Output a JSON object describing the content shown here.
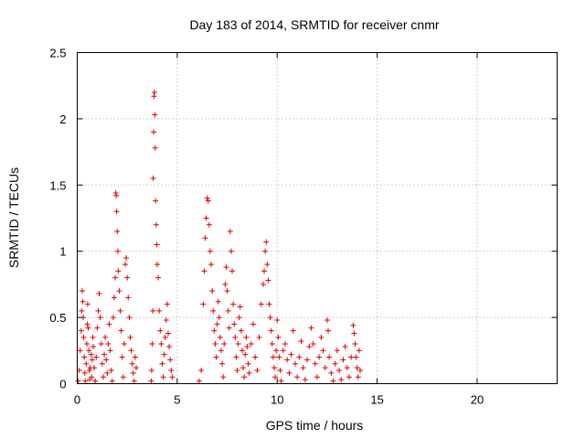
{
  "chart_data": {
    "type": "scatter",
    "title": "Day 183 of 2014, SRMTID for receiver cnmr",
    "xlabel": "GPS time / hours",
    "ylabel": "SRMTID / TECUs",
    "xlim": [
      0,
      24
    ],
    "ylim": [
      0,
      2.5
    ],
    "xticks": [
      0,
      5,
      10,
      15,
      20
    ],
    "xtick_labels": [
      "0",
      "5",
      "10",
      "15",
      "20"
    ],
    "yticks": [
      0,
      0.5,
      1,
      1.5,
      2,
      2.5
    ],
    "ytick_labels": [
      "0",
      "0.5",
      "1",
      "1.5",
      "2",
      "2.5"
    ],
    "grid": true,
    "marker": "+",
    "series": [
      {
        "name": "cnmr",
        "color": "#e00000",
        "points": [
          [
            0.05,
            0.02
          ],
          [
            0.1,
            0.1
          ],
          [
            0.15,
            0.25
          ],
          [
            0.2,
            0.4
          ],
          [
            0.22,
            0.55
          ],
          [
            0.25,
            0.7
          ],
          [
            0.28,
            0.62
          ],
          [
            0.3,
            0.5
          ],
          [
            0.32,
            0.35
          ],
          [
            0.35,
            0.2
          ],
          [
            0.38,
            0.08
          ],
          [
            0.4,
            0.02
          ],
          [
            0.45,
            0.15
          ],
          [
            0.48,
            0.3
          ],
          [
            0.5,
            0.45
          ],
          [
            0.52,
            0.6
          ],
          [
            0.55,
            0.42
          ],
          [
            0.58,
            0.25
          ],
          [
            0.6,
            0.1
          ],
          [
            0.62,
            0.03
          ],
          [
            0.65,
            0.12
          ],
          [
            0.7,
            0.22
          ],
          [
            0.72,
            0.05
          ],
          [
            0.75,
            0.18
          ],
          [
            0.78,
            0.35
          ],
          [
            0.8,
            0.28
          ],
          [
            0.85,
            0.12
          ],
          [
            0.9,
            0.02
          ],
          [
            0.95,
            0.2
          ],
          [
            1.0,
            0.42
          ],
          [
            1.05,
            0.55
          ],
          [
            1.1,
            0.68
          ],
          [
            1.15,
            0.5
          ],
          [
            1.2,
            0.3
          ],
          [
            1.25,
            0.15
          ],
          [
            1.3,
            0.05
          ],
          [
            1.35,
            0.22
          ],
          [
            1.4,
            0.35
          ],
          [
            1.45,
            0.18
          ],
          [
            1.5,
            0.08
          ],
          [
            1.55,
            0.3
          ],
          [
            1.6,
            0.45
          ],
          [
            1.65,
            0.25
          ],
          [
            1.7,
            0.1
          ],
          [
            1.75,
            0.02
          ],
          [
            1.8,
            0.5
          ],
          [
            1.85,
            0.65
          ],
          [
            1.9,
            0.8
          ],
          [
            1.93,
            1.44
          ],
          [
            1.95,
            1.42
          ],
          [
            1.97,
            1.3
          ],
          [
            2.0,
            1.15
          ],
          [
            2.03,
            1.0
          ],
          [
            2.05,
            0.85
          ],
          [
            2.1,
            0.7
          ],
          [
            2.15,
            0.55
          ],
          [
            2.2,
            0.4
          ],
          [
            2.25,
            0.2
          ],
          [
            2.3,
            0.05
          ],
          [
            2.35,
            0.3
          ],
          [
            2.4,
            0.9
          ],
          [
            2.45,
            0.95
          ],
          [
            2.5,
            0.8
          ],
          [
            2.55,
            0.65
          ],
          [
            2.6,
            0.5
          ],
          [
            2.65,
            0.35
          ],
          [
            2.7,
            0.25
          ],
          [
            2.75,
            0.15
          ],
          [
            2.8,
            0.08
          ],
          [
            2.85,
            0.02
          ],
          [
            2.9,
            0.2
          ],
          [
            2.95,
            0.12
          ],
          [
            3.7,
            0.02
          ],
          [
            3.72,
            0.1
          ],
          [
            3.75,
            0.3
          ],
          [
            3.78,
            0.55
          ],
          [
            3.8,
            1.55
          ],
          [
            3.82,
            1.9
          ],
          [
            3.84,
            2.17
          ],
          [
            3.86,
            2.2
          ],
          [
            3.88,
            2.03
          ],
          [
            3.9,
            1.78
          ],
          [
            3.92,
            1.38
          ],
          [
            3.95,
            1.2
          ],
          [
            3.98,
            1.05
          ],
          [
            4.0,
            0.9
          ],
          [
            4.05,
            0.8
          ],
          [
            4.1,
            0.55
          ],
          [
            4.15,
            0.4
          ],
          [
            4.2,
            0.3
          ],
          [
            4.25,
            0.15
          ],
          [
            4.3,
            0.05
          ],
          [
            4.35,
            0.22
          ],
          [
            4.4,
            0.35
          ],
          [
            4.45,
            0.48
          ],
          [
            4.5,
            0.6
          ],
          [
            4.55,
            0.38
          ],
          [
            4.6,
            0.28
          ],
          [
            4.65,
            0.18
          ],
          [
            4.7,
            0.1
          ],
          [
            4.75,
            0.05
          ],
          [
            6.1,
            0.02
          ],
          [
            6.2,
            0.1
          ],
          [
            6.3,
            0.6
          ],
          [
            6.35,
            0.85
          ],
          [
            6.4,
            1.1
          ],
          [
            6.45,
            1.25
          ],
          [
            6.5,
            1.4
          ],
          [
            6.55,
            1.38
          ],
          [
            6.6,
            1.2
          ],
          [
            6.65,
            1.0
          ],
          [
            6.7,
            0.9
          ],
          [
            6.75,
            0.7
          ],
          [
            6.8,
            0.55
          ],
          [
            6.85,
            0.4
          ],
          [
            6.9,
            0.3
          ],
          [
            6.95,
            0.2
          ],
          [
            7.0,
            0.45
          ],
          [
            7.05,
            0.62
          ],
          [
            7.1,
            0.5
          ],
          [
            7.15,
            0.35
          ],
          [
            7.2,
            0.25
          ],
          [
            7.25,
            0.15
          ],
          [
            7.3,
            0.05
          ],
          [
            7.35,
            0.3
          ],
          [
            7.4,
            0.75
          ],
          [
            7.45,
            0.88
          ],
          [
            7.5,
            0.7
          ],
          [
            7.55,
            0.55
          ],
          [
            7.6,
            0.42
          ],
          [
            7.65,
            1.15
          ],
          [
            7.7,
            1.0
          ],
          [
            7.75,
            0.85
          ],
          [
            7.8,
            0.6
          ],
          [
            7.85,
            0.45
          ],
          [
            7.9,
            0.35
          ],
          [
            7.95,
            0.2
          ],
          [
            8.0,
            0.1
          ],
          [
            8.05,
            0.3
          ],
          [
            8.1,
            0.5
          ],
          [
            8.15,
            0.58
          ],
          [
            8.2,
            0.4
          ],
          [
            8.25,
            0.25
          ],
          [
            8.3,
            0.12
          ],
          [
            8.35,
            0.05
          ],
          [
            8.4,
            0.22
          ],
          [
            8.45,
            0.35
          ],
          [
            8.5,
            0.28
          ],
          [
            8.55,
            0.15
          ],
          [
            8.6,
            0.08
          ],
          [
            8.7,
            0.3
          ],
          [
            8.8,
            0.45
          ],
          [
            8.9,
            0.2
          ],
          [
            9.0,
            0.1
          ],
          [
            9.1,
            0.35
          ],
          [
            9.2,
            0.6
          ],
          [
            9.3,
            0.75
          ],
          [
            9.35,
            0.85
          ],
          [
            9.4,
            1.0
          ],
          [
            9.45,
            1.07
          ],
          [
            9.5,
            0.9
          ],
          [
            9.55,
            0.78
          ],
          [
            9.6,
            0.6
          ],
          [
            9.65,
            0.5
          ],
          [
            9.7,
            0.4
          ],
          [
            9.75,
            0.3
          ],
          [
            9.8,
            0.2
          ],
          [
            9.85,
            0.12
          ],
          [
            9.9,
            0.05
          ],
          [
            9.95,
            0.25
          ],
          [
            10.0,
            0.48
          ],
          [
            10.05,
            0.35
          ],
          [
            10.1,
            0.2
          ],
          [
            10.15,
            0.1
          ],
          [
            10.2,
            0.02
          ],
          [
            10.3,
            0.25
          ],
          [
            10.4,
            0.3
          ],
          [
            10.5,
            0.18
          ],
          [
            10.6,
            0.08
          ],
          [
            10.7,
            0.22
          ],
          [
            10.8,
            0.4
          ],
          [
            10.9,
            0.15
          ],
          [
            11.0,
            0.05
          ],
          [
            11.1,
            0.2
          ],
          [
            11.2,
            0.32
          ],
          [
            11.3,
            0.12
          ],
          [
            11.4,
            0.03
          ],
          [
            11.5,
            0.18
          ],
          [
            11.6,
            0.28
          ],
          [
            11.7,
            0.42
          ],
          [
            11.8,
            0.3
          ],
          [
            11.9,
            0.15
          ],
          [
            12.0,
            0.05
          ],
          [
            12.1,
            0.2
          ],
          [
            12.2,
            0.35
          ],
          [
            12.3,
            0.25
          ],
          [
            12.4,
            0.12
          ],
          [
            12.5,
            0.48
          ],
          [
            12.55,
            0.4
          ],
          [
            12.6,
            0.2
          ],
          [
            12.7,
            0.08
          ],
          [
            12.8,
            0.02
          ],
          [
            12.9,
            0.15
          ],
          [
            13.0,
            0.25
          ],
          [
            13.1,
            0.1
          ],
          [
            13.2,
            0.03
          ],
          [
            13.3,
            0.18
          ],
          [
            13.4,
            0.28
          ],
          [
            13.5,
            0.12
          ],
          [
            13.6,
            0.05
          ],
          [
            13.7,
            0.2
          ],
          [
            13.8,
            0.44
          ],
          [
            13.85,
            0.38
          ],
          [
            13.9,
            0.3
          ],
          [
            13.95,
            0.2
          ],
          [
            14.0,
            0.12
          ],
          [
            14.05,
            0.05
          ],
          [
            14.1,
            0.25
          ],
          [
            14.15,
            0.1
          ]
        ]
      }
    ]
  }
}
